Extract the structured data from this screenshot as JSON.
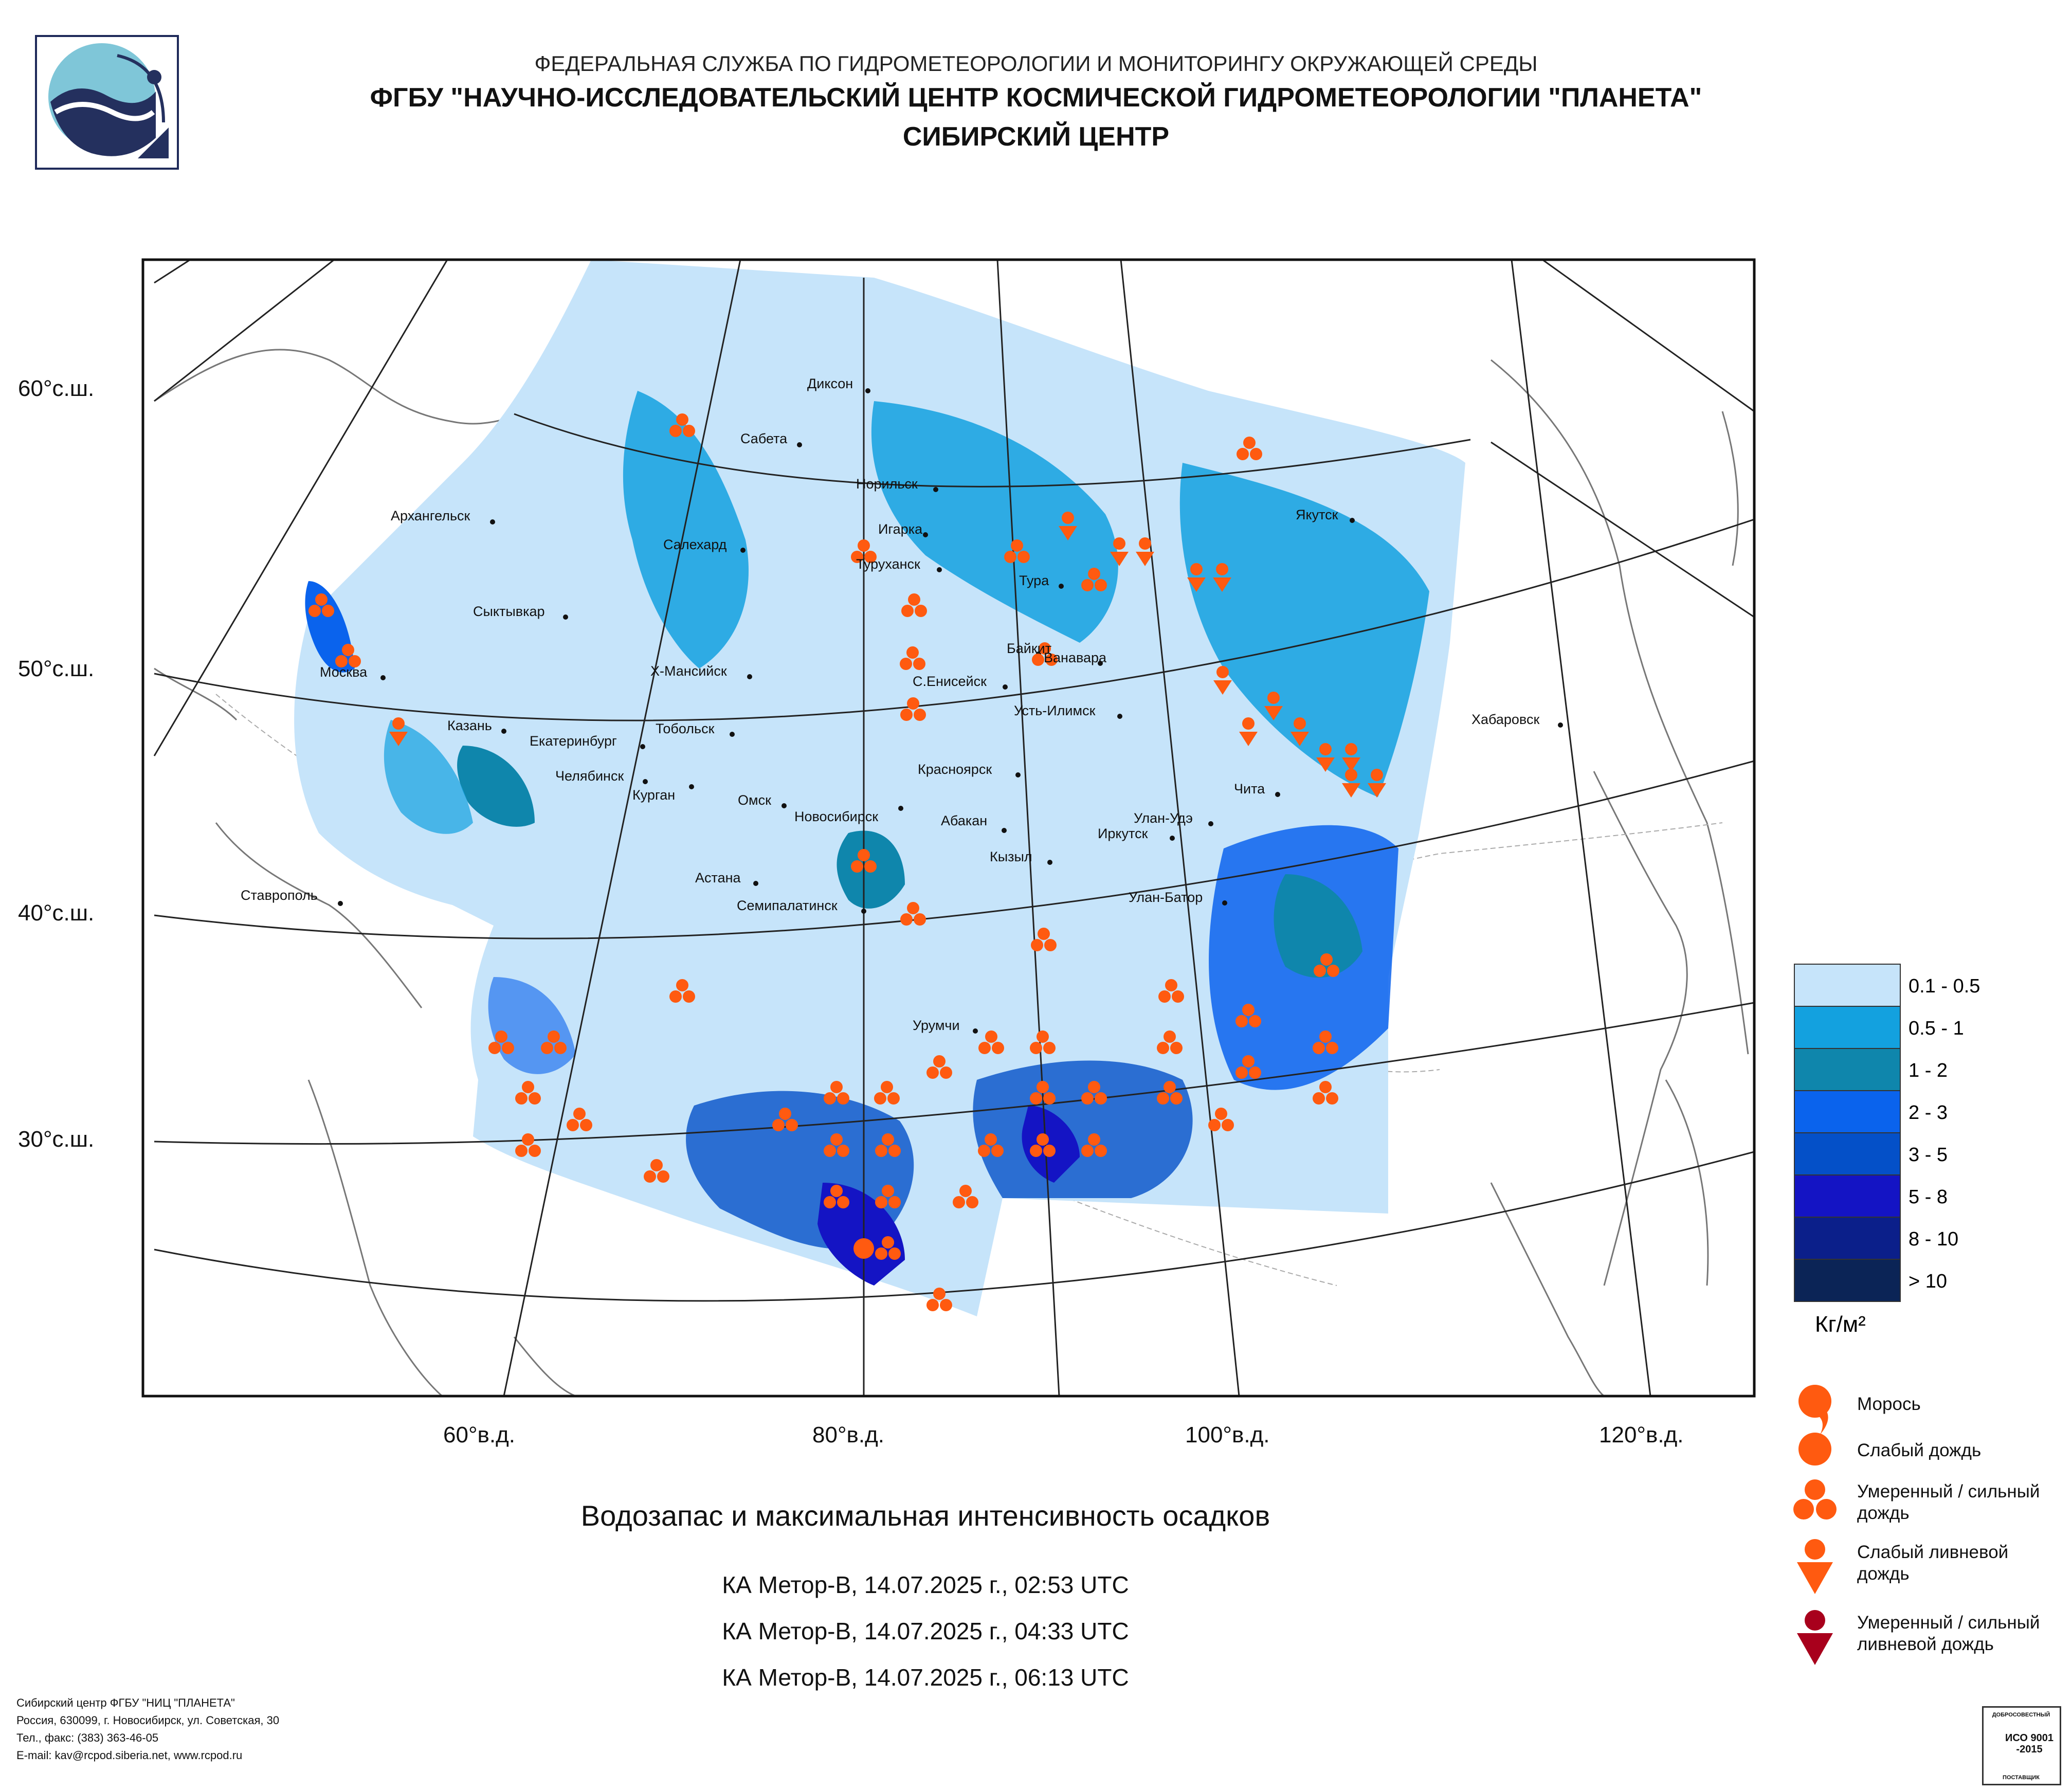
{
  "header": {
    "line1": "ФЕДЕРАЛЬНАЯ СЛУЖБА ПО ГИДРОМЕТЕОРОЛОГИИ И МОНИТОРИНГУ ОКРУЖАЮЩЕЙ СРЕДЫ",
    "line2": "ФГБУ \"НАУЧНО-ИССЛЕДОВАТЕЛЬСКИЙ ЦЕНТР КОСМИЧЕСКОЙ ГИДРОМЕТЕОРОЛОГИИ \"ПЛАНЕТА\"",
    "line3": "СИБИРСКИЙ ЦЕНТР"
  },
  "map": {
    "lat_labels": [
      "60°с.ш.",
      "50°с.ш.",
      "40°с.ш.",
      "30°с.ш."
    ],
    "lon_labels": [
      "60°в.д.",
      "80°в.д.",
      "100°в.д.",
      "120°в.д."
    ],
    "cities": {
      "dikson": "Диксон",
      "sabeta": "Сабета",
      "norilsk": "Норильск",
      "arkhangelsk": "Архангельск",
      "igarka": "Игарка",
      "salekhard": "Салехард",
      "turukhansk": "Туруханск",
      "tura": "Тура",
      "yakutsk": "Якутск",
      "syktyvkar": "Сыктывкар",
      "baikit": "Байкит",
      "vanavara": "Ванавара",
      "moskva": "Москва",
      "khmansiysk": "Х-Мансийск",
      "seniseysk": "С.Енисейск",
      "ustilimsk": "Усть-Илимск",
      "khabarovsk": "Хабаровск",
      "kazan": "Казань",
      "tobolsk": "Тобольск",
      "ekaterinburg": "Екатеринбург",
      "krasnoyarsk": "Красноярск",
      "chelyabinsk": "Челябинск",
      "kurgan": "Курган",
      "chita": "Чита",
      "omsk": "Омск",
      "novosibirsk": "Новосибирск",
      "abakan": "Абакан",
      "ulanude": "Улан-Удэ",
      "irkutsk": "Иркутск",
      "stavropol": "Ставрополь",
      "kyzyl": "Кызыл",
      "astana": "Астана",
      "semipalatinsk": "Семипалатинск",
      "ulanbator": "Улан-Батор",
      "urumchi": "Урумчи"
    }
  },
  "legend": {
    "scale": [
      {
        "label": "0.1 - 0.5",
        "color": "#c6e4fa"
      },
      {
        "label": "0.5 - 1",
        "color": "#13a1df"
      },
      {
        "label": "1 - 2",
        "color": "#0f86ac"
      },
      {
        "label": "2 - 3",
        "color": "#0a63ed"
      },
      {
        "label": "3 - 5",
        "color": "#0450c8"
      },
      {
        "label": "5 - 8",
        "color": "#1414c4"
      },
      {
        "label": "8 - 10",
        "color": "#0b1f8a"
      },
      {
        "label": "> 10",
        "color": "#0b2456"
      }
    ],
    "unit": "Кг/м²",
    "symbols": [
      {
        "label": "Морось",
        "icon": "drizzle-icon"
      },
      {
        "label": "Слабый дождь",
        "icon": "light-rain-icon"
      },
      {
        "label": "Умеренный / сильный дождь",
        "icon": "moderate-rain-icon"
      },
      {
        "label": "Слабый ливневой дождь",
        "icon": "light-shower-icon"
      },
      {
        "label": "Умеренный / сильный ливневой дождь",
        "icon": "heavy-shower-icon"
      }
    ],
    "symbol_colors": {
      "orange": "#ff5a10",
      "darkred": "#a8001c"
    }
  },
  "subtitle": "Водозапас и максимальная интенсивность осадков",
  "passes": [
    "КА Метор-В, 14.07.2025 г., 02:53 UTC",
    "КА Метор-В, 14.07.2025 г., 04:33 UTC",
    "КА Метор-В, 14.07.2025 г., 06:13 UTC"
  ],
  "footer": {
    "org": "Сибирский центр ФГБУ \"НИЦ \"ПЛАНЕТА\"",
    "address": "Россия, 630099, г. Новосибирск, ул. Советская, 30",
    "phone": "Тел., факс: (383) 363-46-05",
    "email": "E-mail: kav@rcpod.siberia.net, www.rcpod.ru"
  },
  "iso_badge": {
    "top": "ДОБРОСОВЕСТНЫЙ",
    "main": "ИСО 9001 -2015",
    "bottom": "ПОСТАВЩИК"
  }
}
